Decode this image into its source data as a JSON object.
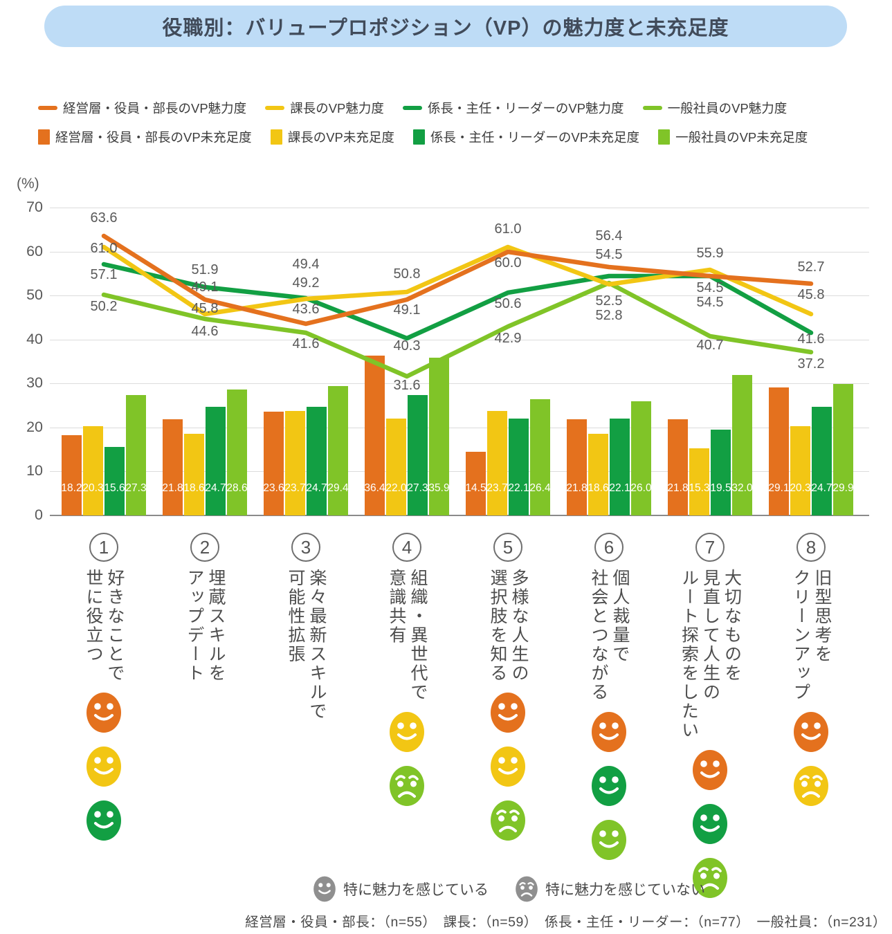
{
  "title": "役職別：バリュープロポジション（VP）の魅力度と未充足度",
  "colors": {
    "orange": "#E4711E",
    "yellow": "#F2C614",
    "green": "#129F43",
    "lightgreen": "#80C428",
    "gray": "#8F8F8F",
    "banner_bg": "#BEDCF6",
    "banner_text": "#414B5A"
  },
  "legend_lines": [
    {
      "label": "経営層・役員・部長のVP魅力度",
      "color_key": "orange"
    },
    {
      "label": "課長のVP魅力度",
      "color_key": "yellow"
    },
    {
      "label": "係長・主任・リーダーのVP魅力度",
      "color_key": "green"
    },
    {
      "label": "一般社員のVP魅力度",
      "color_key": "lightgreen"
    }
  ],
  "legend_bars": [
    {
      "label": "経営層・役員・部長のVP未充足度",
      "color_key": "orange"
    },
    {
      "label": "課長のVP未充足度",
      "color_key": "yellow"
    },
    {
      "label": "係長・主任・リーダーのVP未充足度",
      "color_key": "green"
    },
    {
      "label": "一般社員のVP未充足度",
      "color_key": "lightgreen"
    }
  ],
  "y_axis": {
    "unit": "(%)",
    "ticks": [
      0,
      10,
      20,
      30,
      40,
      50,
      60,
      70
    ],
    "min": 0,
    "max": 70
  },
  "chart_data": {
    "type": "bar+line combo",
    "ylim": [
      0,
      70
    ],
    "grid": true,
    "categories": [
      "①",
      "②",
      "③",
      "④",
      "⑤",
      "⑥",
      "⑦",
      "⑧"
    ],
    "line_series": [
      {
        "name": "経営層・役員・部長のVP魅力度",
        "color_key": "orange",
        "values": [
          63.6,
          49.1,
          43.6,
          49.1,
          60.0,
          56.4,
          54.5,
          52.7
        ]
      },
      {
        "name": "課長のVP魅力度",
        "color_key": "yellow",
        "values": [
          61.0,
          45.8,
          49.2,
          50.8,
          61.0,
          52.5,
          55.9,
          45.8
        ]
      },
      {
        "name": "係長・主任・リーダーのVP魅力度",
        "color_key": "green",
        "values": [
          57.1,
          51.9,
          49.4,
          40.3,
          50.6,
          54.5,
          54.5,
          41.6
        ]
      },
      {
        "name": "一般社員のVP魅力度",
        "color_key": "lightgreen",
        "values": [
          50.2,
          44.6,
          41.6,
          31.6,
          42.9,
          52.8,
          40.7,
          37.2
        ]
      }
    ],
    "bar_series": [
      {
        "name": "経営層・役員・部長のVP未充足度",
        "color_key": "orange",
        "values": [
          18.2,
          21.8,
          23.6,
          36.4,
          14.5,
          21.8,
          21.8,
          29.1
        ]
      },
      {
        "name": "課長のVP未充足度",
        "color_key": "yellow",
        "values": [
          20.3,
          18.6,
          23.7,
          22.0,
          23.7,
          18.6,
          15.3,
          20.3
        ]
      },
      {
        "name": "係長・主任・リーダーのVP未充足度",
        "color_key": "green",
        "values": [
          15.6,
          24.7,
          24.7,
          27.3,
          22.1,
          22.1,
          19.5,
          24.7
        ]
      },
      {
        "name": "一般社員のVP未充足度",
        "color_key": "lightgreen",
        "values": [
          27.3,
          28.6,
          29.4,
          35.9,
          26.4,
          26.0,
          32.0,
          29.9
        ]
      }
    ]
  },
  "categories": [
    {
      "number": "1",
      "label_lines": [
        "好きなことで",
        "世に役立つ"
      ],
      "faces": [
        {
          "color_key": "orange",
          "mood": "happy"
        },
        {
          "color_key": "yellow",
          "mood": "happy"
        },
        {
          "color_key": "green",
          "mood": "happy"
        }
      ]
    },
    {
      "number": "2",
      "label_lines": [
        "埋蔵スキルを",
        "アップデート"
      ],
      "faces": []
    },
    {
      "number": "3",
      "label_lines": [
        "楽々最新スキルで",
        "可能性拡張"
      ],
      "faces": []
    },
    {
      "number": "4",
      "label_lines": [
        "組織・異世代で",
        "意識共有"
      ],
      "faces": [
        {
          "color_key": "yellow",
          "mood": "happy"
        },
        {
          "color_key": "lightgreen",
          "mood": "sad"
        }
      ]
    },
    {
      "number": "5",
      "label_lines": [
        "多様な人生の",
        "選択肢を知る"
      ],
      "faces": [
        {
          "color_key": "orange",
          "mood": "happy"
        },
        {
          "color_key": "yellow",
          "mood": "happy"
        },
        {
          "color_key": "lightgreen",
          "mood": "sad"
        }
      ]
    },
    {
      "number": "6",
      "label_lines": [
        "個人裁量で",
        "社会とつながる"
      ],
      "faces": [
        {
          "color_key": "orange",
          "mood": "happy"
        },
        {
          "color_key": "green",
          "mood": "happy"
        },
        {
          "color_key": "lightgreen",
          "mood": "happy"
        }
      ]
    },
    {
      "number": "7",
      "label_lines": [
        "大切なものを",
        "見直して人生の",
        "ルート探索をしたい"
      ],
      "faces": [
        {
          "color_key": "orange",
          "mood": "happy"
        },
        {
          "color_key": "green",
          "mood": "happy"
        },
        {
          "color_key": "lightgreen",
          "mood": "sad"
        }
      ]
    },
    {
      "number": "8",
      "label_lines": [
        "旧型思考を",
        "クリーンアップ"
      ],
      "faces": [
        {
          "color_key": "orange",
          "mood": "happy"
        },
        {
          "color_key": "yellow",
          "mood": "sad"
        }
      ]
    }
  ],
  "faces_legend": [
    {
      "mood": "happy",
      "label": "特に魅力を感じている"
    },
    {
      "mood": "sad",
      "label": "特に魅力を感じていない"
    }
  ],
  "footnote": "経営層・役員・部長：（n=55）　課長：（n=59）　係長・主任・リーダー：（n=77）　一般社員：（n=231）"
}
